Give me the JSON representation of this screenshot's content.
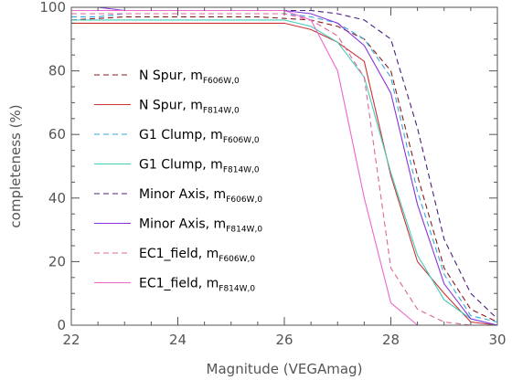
{
  "chart_data": {
    "type": "line",
    "title": "",
    "xlabel": "Magnitude (VEGAmag)",
    "ylabel": "completeness (%)",
    "xlim": [
      22,
      30
    ],
    "ylim": [
      0,
      100
    ],
    "xticks": [
      "22",
      "24",
      "26",
      "28",
      "30"
    ],
    "yticks": [
      "0",
      "20",
      "40",
      "60",
      "80",
      "100"
    ],
    "grid": false,
    "legend_position": "left",
    "series": [
      {
        "name": "N Spur, m",
        "subscript": "F606W,0",
        "color": "#8b1a1a",
        "dash": true,
        "x": [
          22,
          22.5,
          23,
          23.5,
          24,
          24.5,
          25,
          25.5,
          26,
          26.5,
          27,
          27.5,
          28,
          28.5,
          29,
          29.5,
          30
        ],
        "y": [
          96,
          96.5,
          97,
          97,
          97,
          97,
          97,
          97,
          96.5,
          96,
          94,
          90,
          80,
          47,
          18,
          5,
          1
        ]
      },
      {
        "name": "N Spur, m",
        "subscript": "F814W,0",
        "color": "#cc3333",
        "dash": false,
        "x": [
          22,
          22.5,
          23,
          23.5,
          24,
          24.5,
          25,
          25.5,
          26,
          26.5,
          27,
          27.5,
          28,
          28.5,
          29,
          29.5,
          30
        ],
        "y": [
          95,
          95,
          95,
          95,
          95,
          95,
          95,
          95,
          95,
          93,
          89,
          83,
          47,
          20,
          10,
          1,
          0
        ]
      },
      {
        "name": "G1 Clump, m",
        "subscript": "F606W,0",
        "color": "#33aadd",
        "dash": true,
        "x": [
          22,
          22.5,
          23,
          23.5,
          24,
          24.5,
          25,
          25.5,
          26,
          26.5,
          27,
          27.5,
          28,
          28.5,
          29,
          29.5,
          30
        ],
        "y": [
          97,
          97,
          98,
          98,
          98,
          98,
          98,
          98,
          98,
          97,
          95,
          90,
          78,
          42,
          16,
          3,
          1
        ]
      },
      {
        "name": "G1 Clump, m",
        "subscript": "F814W,0",
        "color": "#44ccbb",
        "dash": false,
        "x": [
          22,
          22.5,
          23,
          23.5,
          24,
          24.5,
          25,
          25.5,
          26,
          26.5,
          27,
          27.5,
          28,
          28.5,
          29,
          29.5,
          30
        ],
        "y": [
          96,
          96,
          96,
          96,
          96,
          96,
          96,
          96,
          96,
          94,
          89,
          78,
          48,
          22,
          8,
          2,
          0
        ]
      },
      {
        "name": "Minor Axis, m",
        "subscript": "F606W,0",
        "color": "#4b1f7a",
        "dash": true,
        "x": [
          22,
          22.5,
          23,
          23.5,
          24,
          24.5,
          25,
          25.5,
          26,
          26.5,
          27,
          27.5,
          28,
          28.5,
          29,
          29.5,
          30
        ],
        "y": [
          99,
          99,
          99,
          99,
          99,
          99,
          99,
          99,
          99,
          99,
          98,
          96,
          90,
          62,
          27,
          10,
          2
        ]
      },
      {
        "name": "Minor Axis, m",
        "subscript": "F814W,0",
        "color": "#8833dd",
        "dash": false,
        "x": [
          22,
          22.5,
          23,
          23.5,
          24,
          24.5,
          25,
          25.5,
          26,
          26.5,
          27,
          27.5,
          28,
          28.5,
          29,
          29.5,
          30
        ],
        "y": [
          100,
          100,
          99,
          99,
          99,
          99,
          99,
          99,
          99,
          98,
          95,
          88,
          73,
          38,
          13,
          2,
          0
        ]
      },
      {
        "name": "EC1_field, m",
        "subscript": "F606W,0",
        "color": "#dd6699",
        "dash": true,
        "x": [
          22,
          22.5,
          23,
          23.5,
          24,
          24.5,
          25,
          25.5,
          26,
          26.5,
          27,
          27.5,
          28,
          28.5,
          29,
          29.5,
          30
        ],
        "y": [
          98,
          98,
          98,
          98,
          98,
          98,
          98,
          98,
          98,
          96,
          91,
          78,
          18,
          5,
          1,
          0,
          0
        ]
      },
      {
        "name": "EC1_field, m",
        "subscript": "F814W,0",
        "color": "#ee66cc",
        "dash": false,
        "x": [
          22,
          22.5,
          23,
          23.5,
          24,
          24.5,
          25,
          25.5,
          26,
          26.5,
          27,
          27.5,
          28,
          28.5,
          29,
          29.5,
          30
        ],
        "y": [
          99,
          99,
          99,
          99,
          99,
          99,
          99,
          99,
          99,
          96,
          80,
          40,
          7,
          0,
          0,
          0,
          0
        ]
      }
    ]
  }
}
